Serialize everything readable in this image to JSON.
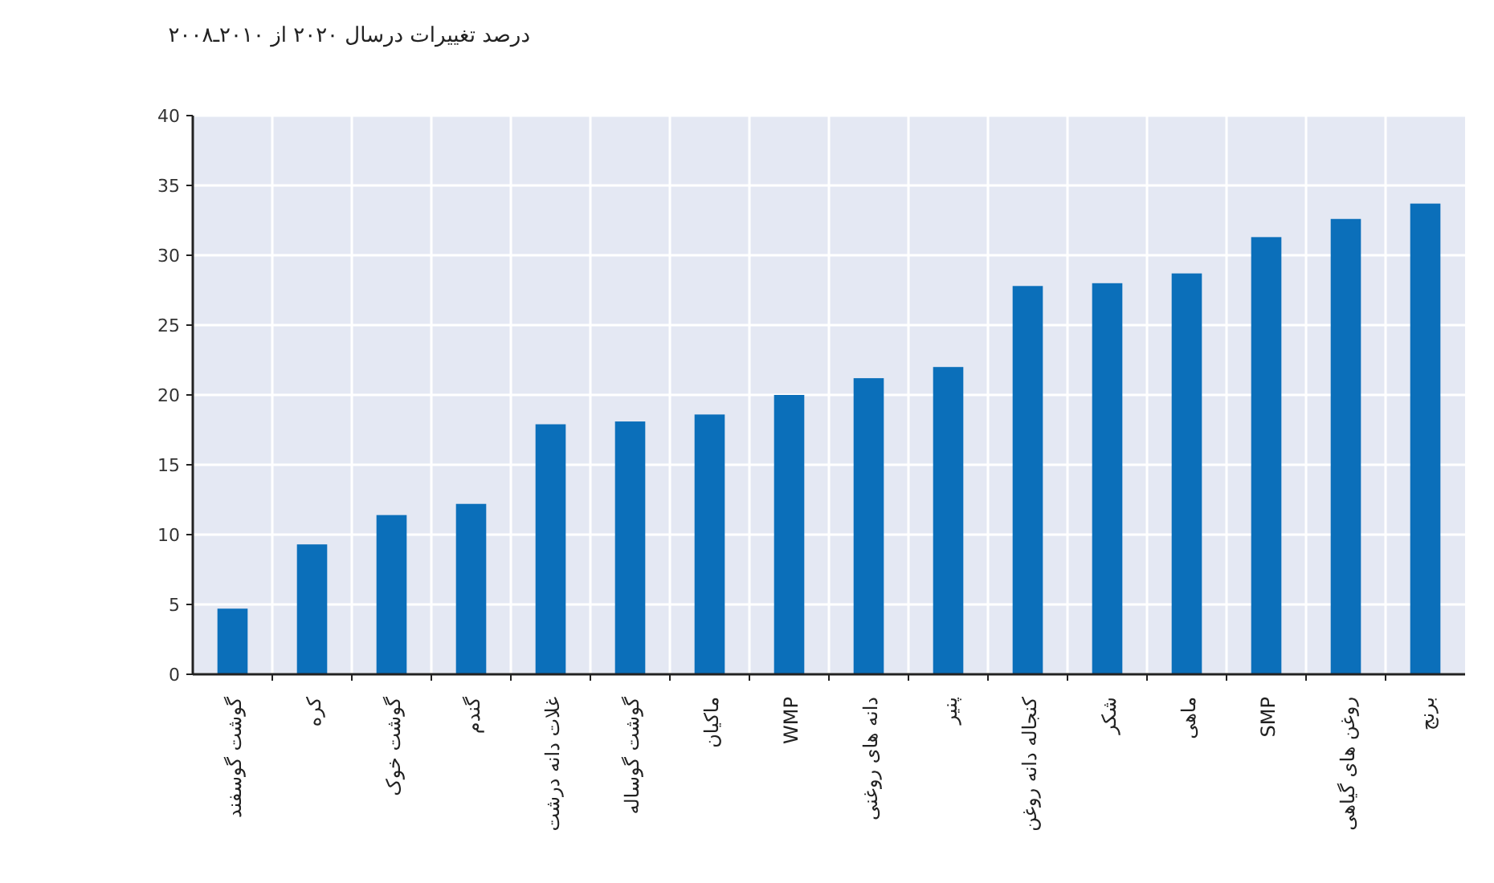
{
  "chart_data": {
    "type": "bar",
    "title": "درصد تغییرات درسال ۲۰۲۰ از ۲۰۱۰ـ۲۰۰۸",
    "categories": [
      "گوشت گوسفند",
      "کره",
      "گوشت خوک",
      "گندم",
      "غلات دانه درشت",
      "گوشت گوساله",
      "ماکیان",
      "WMP",
      "دانه های روغنی",
      "پنیر",
      "کنجاله دانه روغن",
      "شکر",
      "ماهی",
      "SMP",
      "روغن های گیاهی",
      "برنج"
    ],
    "values": [
      4.7,
      9.3,
      11.4,
      12.2,
      17.9,
      18.1,
      18.6,
      20.0,
      21.2,
      22.0,
      27.8,
      28.0,
      28.7,
      31.3,
      32.6,
      33.7
    ],
    "color": "#0b6fba",
    "ylim": [
      0,
      40
    ],
    "yticks": [
      0,
      5,
      10,
      15,
      20,
      25,
      30,
      35,
      40
    ],
    "grid": true
  }
}
